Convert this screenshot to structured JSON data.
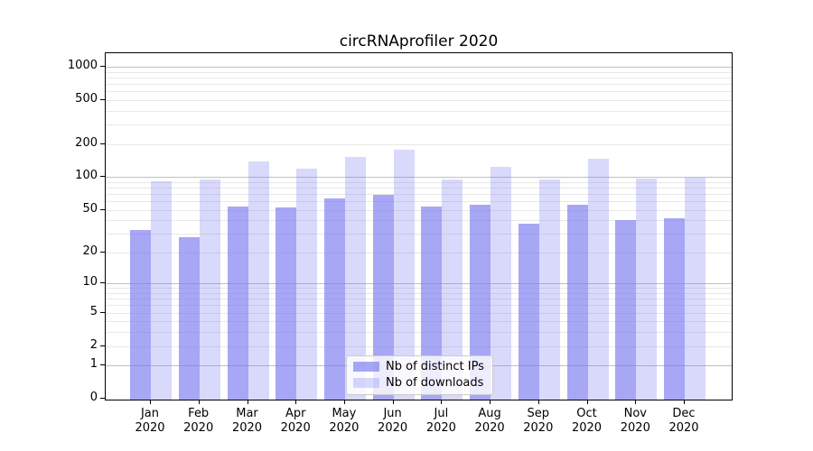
{
  "chart_data": {
    "type": "bar",
    "title": "circRNAprofiler 2020",
    "categories": [
      "Jan 2020",
      "Feb 2020",
      "Mar 2020",
      "Apr 2020",
      "May 2020",
      "Jun 2020",
      "Jul 2020",
      "Aug 2020",
      "Sep 2020",
      "Oct 2020",
      "Nov 2020",
      "Dec 2020"
    ],
    "series": [
      {
        "name": "Nb of distinct IPs",
        "color": "rgba(120,120,240,0.65)",
        "values": [
          31,
          27,
          52,
          51,
          61,
          66,
          52,
          54,
          36,
          54,
          39,
          40
        ]
      },
      {
        "name": "Nb of downloads",
        "color": "rgba(120,120,240,0.28)",
        "values": [
          88,
          91,
          133,
          114,
          146,
          171,
          91,
          119,
          91,
          142,
          93,
          95
        ]
      }
    ],
    "xlabel": "",
    "ylabel": "",
    "yscale": "log(value+1)",
    "y_ticks": [
      0,
      1,
      2,
      5,
      10,
      20,
      50,
      100,
      200,
      500,
      1000
    ],
    "y_minor_gridlines": [
      2,
      3,
      4,
      5,
      6,
      7,
      8,
      9,
      20,
      30,
      40,
      50,
      60,
      70,
      80,
      90,
      200,
      300,
      400,
      500,
      600,
      700,
      800,
      900
    ],
    "y_major_gridlines": [
      1,
      10,
      100,
      1000
    ],
    "ylim": [
      0,
      1320
    ],
    "grid": true,
    "legend_position": "bottom-center",
    "colors": {
      "bar_distinct_ips": "#a7a7f5",
      "bar_downloads": "#d9d9f9",
      "grid_major": "#c0c0c0",
      "grid_minor": "#e8e8e8",
      "spine": "#000000"
    }
  }
}
